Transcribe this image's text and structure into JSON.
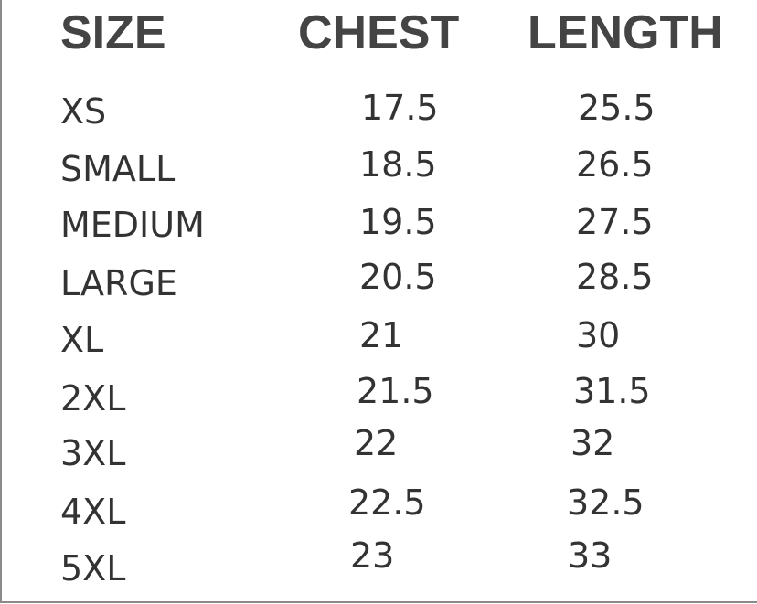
{
  "headers": {
    "size": "SIZE",
    "chest": "CHEST",
    "length": "LENGTH"
  },
  "rows": [
    {
      "size": "XS",
      "chest": "17.5",
      "length": "25.5"
    },
    {
      "size": "SMALL",
      "chest": "18.5",
      "length": "26.5"
    },
    {
      "size": "MEDIUM",
      "chest": "19.5",
      "length": "27.5"
    },
    {
      "size": "LARGE",
      "chest": "20.5",
      "length": "28.5"
    },
    {
      "size": "XL",
      "chest": "21",
      "length": "30"
    },
    {
      "size": "2XL",
      "chest": "21.5",
      "length": "31.5"
    },
    {
      "size": "3XL",
      "chest": "22",
      "length": "32"
    },
    {
      "size": "4XL",
      "chest": "22.5",
      "length": "32.5"
    },
    {
      "size": "5XL",
      "chest": "23",
      "length": "33"
    }
  ],
  "colors": {
    "header_text": "#444444",
    "body_text": "#333333",
    "border": "#8a8a8a"
  }
}
